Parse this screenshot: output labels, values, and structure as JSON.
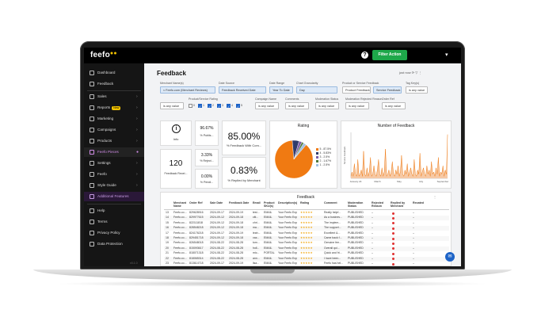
{
  "app": {
    "logo": "feefo",
    "logo_dots": "●●",
    "help_icon": "?",
    "filter_action": "Filter Action",
    "user_chevron": "▾"
  },
  "sidebar": {
    "items": [
      {
        "label": "Dashboard",
        "icon": "dashboard-icon"
      },
      {
        "label": "Feedback",
        "icon": "feedback-icon"
      },
      {
        "label": "Sales",
        "icon": "sales-icon",
        "chevron": "›"
      },
      {
        "label": "Reports",
        "icon": "reports-icon",
        "badge": "New",
        "chevron": "›"
      },
      {
        "label": "Marketing",
        "icon": "marketing-icon",
        "chevron": "›"
      },
      {
        "label": "Campaigns",
        "icon": "campaigns-icon",
        "chevron": "›"
      },
      {
        "label": "Products",
        "icon": "products-icon",
        "chevron": "›"
      },
      {
        "label": "Feefo Pieces",
        "icon": "pieces-icon",
        "chevron": "●"
      },
      {
        "label": "Settings",
        "icon": "settings-icon",
        "chevron": "›"
      },
      {
        "label": "Feefo",
        "icon": "feefo-icon",
        "chevron": "›"
      },
      {
        "label": "Style Guide",
        "icon": "style-guide-icon",
        "chevron": "›"
      },
      {
        "label": "Additional Features",
        "icon": "additional-features-icon"
      },
      {
        "label": "Help",
        "icon": "help-icon"
      },
      {
        "label": "Terms",
        "icon": "terms-icon"
      },
      {
        "label": "Privacy Policy",
        "icon": "privacy-icon"
      },
      {
        "label": "Data Protection",
        "icon": "data-protection-icon"
      }
    ],
    "footer": "v0.1.0"
  },
  "header": {
    "title": "Feedback",
    "tools": "just now  ⟳  ▽  ⋮"
  },
  "filters": {
    "row1": [
      {
        "label": "Merchant Name(s)",
        "value": "≈ Feefo.com (Merchant Reviews)"
      },
      {
        "label": "Date Source",
        "value": "Feedback Received Date"
      },
      {
        "label": "Date Range",
        "value": "Year To Date"
      },
      {
        "label": "Chart Granularity",
        "value": "Day"
      },
      {
        "label": "Product or Service Feedback",
        "value": "Product Feedback"
      },
      {
        "label": "",
        "value": "Service Feedback"
      },
      {
        "label": "Tag Key(s)",
        "value": "is any value"
      }
    ],
    "row2": [
      {
        "label": "Product/Service Rating",
        "value": ""
      },
      {
        "label": "Campaign Name",
        "value": "is any value"
      },
      {
        "label": "Comments",
        "value": "is any value"
      },
      {
        "label": "Moderation Status",
        "value": "is any value"
      },
      {
        "label": "Moderation Rejected Reason",
        "value": "is any value"
      },
      {
        "label": "Order Ref",
        "value": "is any value"
      }
    ],
    "row2_first_value": "is any value",
    "checkboxes": [
      "0",
      "1",
      "2",
      "3",
      "4",
      "5"
    ]
  },
  "kpis": {
    "info_label": "Info",
    "info_icon": "i",
    "published_value": "96.67%",
    "published_label": "% Publis...",
    "feedback_received_value": "120",
    "feedback_received_label": "Feedback Recei...",
    "rejected_value": "3.33%",
    "rejected_label": "% Reject...",
    "pending_value": "0.00%",
    "pending_label": "% Pendi...",
    "with_comment_value": "85.00%",
    "with_comment_label": "% Feedback With Com...",
    "replied_value": "0.83%",
    "replied_label": "% Replied by Merchant"
  },
  "rating_chart": {
    "title": "Rating",
    "slices": [
      {
        "label": "5 - 87.5%",
        "value": 87.5,
        "color": "#f07a12"
      },
      {
        "label": "4 - 5.83%",
        "value": 5.83,
        "color": "#2f3b6b"
      },
      {
        "label": "3 - 2.5%",
        "value": 2.5,
        "color": "#7b5ea8"
      },
      {
        "label": "2 - 1.67%",
        "value": 1.67,
        "color": "#4f7a3a"
      },
      {
        "label": "1 - 2.5%",
        "value": 2.5,
        "color": "#a3c1e3"
      }
    ]
  },
  "chart_data": {
    "type": "area",
    "title": "Number of Feedback",
    "xlabel": "",
    "ylabel": "Service Feedback",
    "x_ticks": [
      "January 24",
      "March",
      "May",
      "July",
      "September"
    ],
    "values": [
      1,
      3,
      1,
      7,
      2,
      1,
      9,
      1,
      2,
      4,
      1,
      13,
      2,
      1,
      5,
      1,
      3,
      10,
      1,
      2,
      6,
      2,
      1,
      4,
      9,
      2,
      1,
      5,
      1,
      3,
      14,
      1,
      2,
      4,
      1,
      3,
      8,
      2,
      1,
      4,
      2,
      6,
      1,
      3,
      11,
      2,
      1,
      4,
      2,
      7,
      1,
      3,
      5,
      2,
      1,
      9,
      2,
      1,
      4,
      2,
      12,
      1,
      3,
      5,
      2,
      1,
      6,
      2,
      4,
      1,
      8,
      2,
      3,
      1,
      5,
      2,
      10,
      1,
      3,
      2,
      6,
      1,
      4,
      2,
      21
    ],
    "ylim": [
      0,
      22
    ],
    "color": "#f07a12",
    "fill": "#f6c9a5"
  },
  "table": {
    "title": "Feedback",
    "columns": [
      "",
      "Merchant Name",
      "Order Ref",
      "Sale Date",
      "Feedback Date",
      "Email",
      "Product SKU(s)",
      "Description(s)",
      "Rating",
      "Comment",
      "Moderation Status",
      "Rejected Reason",
      "Replied by Merchant",
      "Recated"
    ],
    "rows": [
      [
        "13",
        "Feefo.co...",
        "829628916",
        "2024-09-17",
        "2024-09-19",
        "test...",
        "EMAIL",
        "Your Feefo Exp",
        "★★★★★",
        "Really helpf...",
        "PUBLISHED",
        "–",
        "●",
        "–"
      ],
      [
        "14",
        "Feefo.co...",
        "829977615",
        "2024-09-12",
        "2024-09-18",
        "citi...",
        "EMAIL",
        "Your Feefo Exp",
        "★★★★★",
        "As a busines...",
        "PUBLISHED",
        "–",
        "●",
        "–"
      ],
      [
        "15",
        "Feefo.co...",
        "822111818",
        "2024-09-12",
        "2024-09-18",
        "chri...",
        "EMAIL",
        "Your Feefo Exp",
        "★★★★★",
        "The implem...",
        "PUBLISHED",
        "–",
        "●",
        "–"
      ],
      [
        "16",
        "Feefo.co...",
        "828548218",
        "2024-09-12",
        "2024-09-18",
        "ma...",
        "EMAIL",
        "Your Feefo Exp",
        "★★★★★",
        "The support...",
        "PUBLISHED",
        "–",
        "●",
        "–"
      ],
      [
        "17",
        "Feefo.co...",
        "824176218",
        "2024-09-17",
        "2024-09-19",
        "leah...",
        "EMAIL",
        "Your Feefo Exp",
        "★★★★★",
        "Excellent &...",
        "PUBLISHED",
        "–",
        "●",
        "–"
      ],
      [
        "18",
        "Feefo.co...",
        "829451718",
        "2024-09-12",
        "2024-09-18",
        "vaz...",
        "EMAIL",
        "Your Feefo Exp",
        "★★★★★",
        "Came back f...",
        "PUBLISHED",
        "–",
        "●",
        "–"
      ],
      [
        "19",
        "Feefo.co...",
        "826548018",
        "2024-08-22",
        "2024-08-28",
        "tom...",
        "EMAIL",
        "Your Feefo Exp",
        "★★★★★",
        "Genuine fee...",
        "PUBLISHED",
        "–",
        "●",
        "–"
      ],
      [
        "20",
        "Feefo.co...",
        "815093617",
        "2024-08-22",
        "2024-08-28",
        "holl...",
        "EMAIL",
        "Your Feefo Exp",
        "★★★★★",
        "Overall qui...",
        "PUBLISHED",
        "–",
        "●",
        "–"
      ],
      [
        "21",
        "Feefo.co...",
        "818071318",
        "2024-08-22",
        "2024-08-28",
        "mic...",
        "PORTAL",
        "Your Feefo Exp",
        "★★★★★",
        "Quick and fri...",
        "PUBLISHED",
        "–",
        "●",
        "–"
      ],
      [
        "22",
        "Feefo.co...",
        "818065314",
        "2024-08-22",
        "2024-08-28",
        "ann...",
        "EMAIL",
        "Your Feefo Exp",
        "★★★★★",
        "I have been...",
        "PUBLISHED",
        "–",
        "●",
        "–"
      ],
      [
        "23",
        "Feefo.co...",
        "813614718",
        "2024-09-17",
        "2024-09-19",
        "lisa...",
        "EMAIL",
        "Your Feefo Exp",
        "★★★★★",
        "Feefo has hel...",
        "PUBLISHED",
        "–",
        "●",
        "–"
      ]
    ]
  },
  "chat": {
    "icon": "chat-icon",
    "glyph": "✉"
  }
}
